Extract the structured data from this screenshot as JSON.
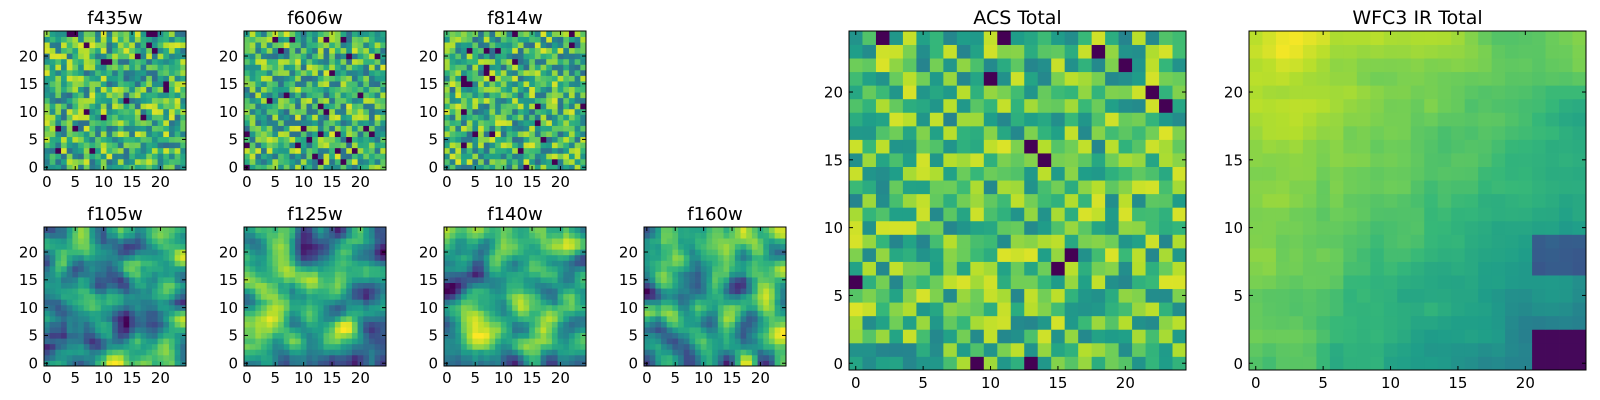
{
  "chart_data": [
    {
      "type": "heatmap",
      "title": "f435w",
      "xticks": [
        0,
        5,
        10,
        15,
        20
      ],
      "yticks": [
        0,
        5,
        10,
        15,
        20
      ],
      "xlim": [
        0,
        25
      ],
      "ylim": [
        0,
        25
      ],
      "grid_size": [
        25,
        25
      ],
      "colormap": "viridis",
      "pattern": "noise",
      "seed": 11,
      "smooth": 0
    },
    {
      "type": "heatmap",
      "title": "f606w",
      "xticks": [
        0,
        5,
        10,
        15,
        20
      ],
      "yticks": [
        0,
        5,
        10,
        15,
        20
      ],
      "xlim": [
        0,
        25
      ],
      "ylim": [
        0,
        25
      ],
      "grid_size": [
        25,
        25
      ],
      "colormap": "viridis",
      "pattern": "noise",
      "seed": 23,
      "smooth": 0
    },
    {
      "type": "heatmap",
      "title": "f814w",
      "xticks": [
        0,
        5,
        10,
        15,
        20
      ],
      "yticks": [
        0,
        5,
        10,
        15,
        20
      ],
      "xlim": [
        0,
        25
      ],
      "ylim": [
        0,
        25
      ],
      "grid_size": [
        25,
        25
      ],
      "colormap": "viridis",
      "pattern": "noise",
      "seed": 37,
      "smooth": 0
    },
    {
      "type": "heatmap",
      "title": "f105w",
      "xticks": [
        0,
        5,
        10,
        15,
        20
      ],
      "yticks": [
        0,
        5,
        10,
        15,
        20
      ],
      "xlim": [
        0,
        25
      ],
      "ylim": [
        0,
        25
      ],
      "grid_size": [
        25,
        25
      ],
      "colormap": "viridis",
      "pattern": "smooth-noise",
      "seed": 41,
      "smooth": 2
    },
    {
      "type": "heatmap",
      "title": "f125w",
      "xticks": [
        0,
        5,
        10,
        15,
        20
      ],
      "yticks": [
        0,
        5,
        10,
        15,
        20
      ],
      "xlim": [
        0,
        25
      ],
      "ylim": [
        0,
        25
      ],
      "grid_size": [
        25,
        25
      ],
      "colormap": "viridis",
      "pattern": "smooth-noise",
      "seed": 53,
      "smooth": 2
    },
    {
      "type": "heatmap",
      "title": "f140w",
      "xticks": [
        0,
        5,
        10,
        15,
        20
      ],
      "yticks": [
        0,
        5,
        10,
        15,
        20
      ],
      "xlim": [
        0,
        25
      ],
      "ylim": [
        0,
        25
      ],
      "grid_size": [
        25,
        25
      ],
      "colormap": "viridis",
      "pattern": "smooth-noise",
      "seed": 67,
      "smooth": 2
    },
    {
      "type": "heatmap",
      "title": "f160w",
      "xticks": [
        0,
        5,
        10,
        15,
        20
      ],
      "yticks": [
        0,
        5,
        10,
        15,
        20
      ],
      "xlim": [
        0,
        25
      ],
      "ylim": [
        0,
        25
      ],
      "grid_size": [
        25,
        25
      ],
      "colormap": "viridis",
      "pattern": "smooth-noise",
      "seed": 79,
      "smooth": 2
    },
    {
      "type": "heatmap",
      "title": "ACS Total",
      "xticks": [
        0,
        5,
        10,
        15,
        20
      ],
      "yticks": [
        0,
        5,
        10,
        15,
        20
      ],
      "xlim": [
        0,
        25
      ],
      "ylim": [
        0,
        25
      ],
      "grid_size": [
        25,
        25
      ],
      "colormap": "viridis",
      "pattern": "noise-bright",
      "seed": 97,
      "smooth": 0
    },
    {
      "type": "heatmap",
      "title": "WFC3 IR Total",
      "xticks": [
        0,
        5,
        10,
        15,
        20
      ],
      "yticks": [
        0,
        5,
        10,
        15,
        20
      ],
      "xlim": [
        0,
        25
      ],
      "ylim": [
        0,
        25
      ],
      "grid_size": [
        25,
        25
      ],
      "colormap": "viridis",
      "pattern": "gradient-dark-corner",
      "seed": 113,
      "smooth": 1
    }
  ]
}
